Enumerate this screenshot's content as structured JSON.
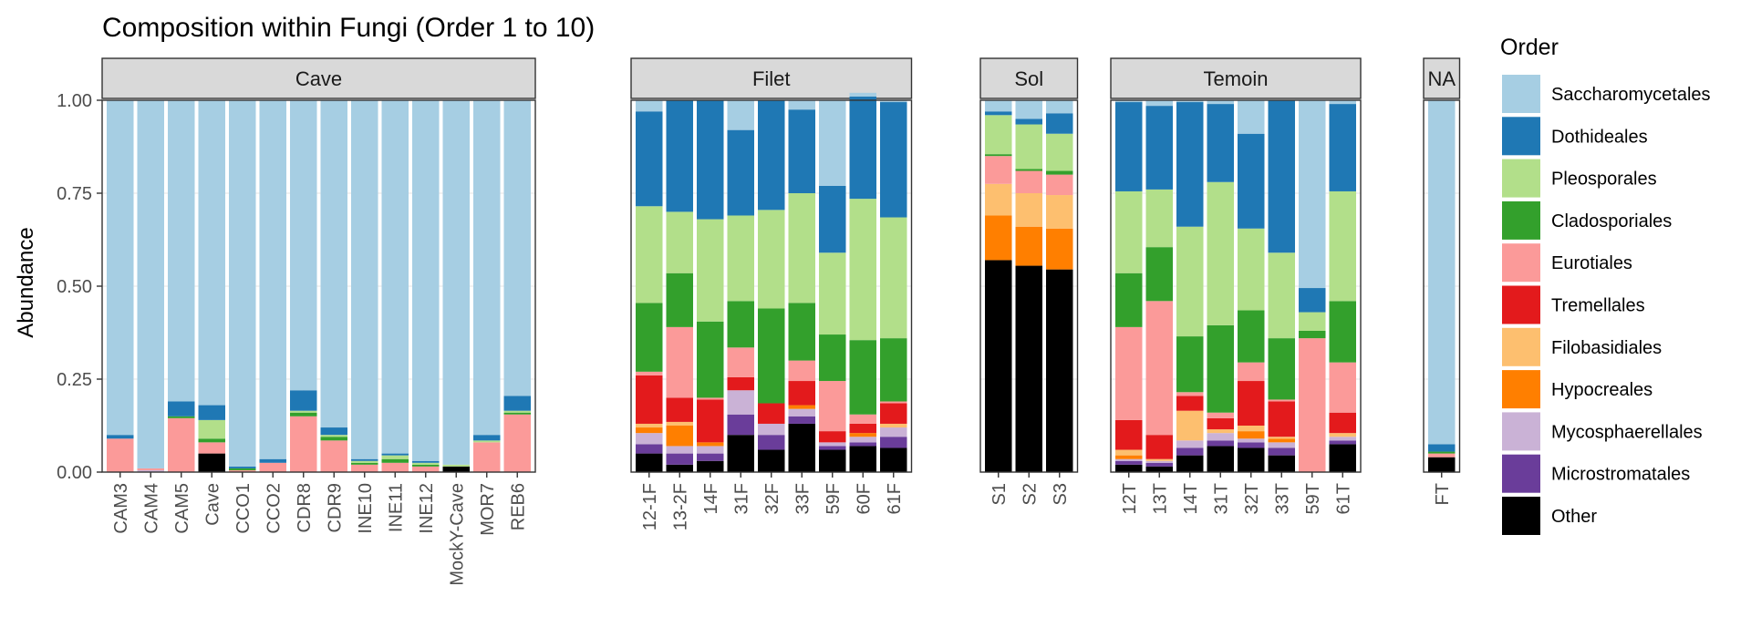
{
  "chart_data": {
    "type": "bar",
    "stacked": true,
    "faceted": true,
    "title": "Composition within Fungi (Order 1 to 10)",
    "xlabel": "",
    "ylabel": "Abundance",
    "ylim": [
      0,
      1
    ],
    "yticks": [
      "0.00",
      "0.25",
      "0.50",
      "0.75",
      "1.00"
    ],
    "legend": {
      "title": "Order",
      "position": "right",
      "entries": [
        "Saccharomycetales",
        "Dothideales",
        "Pleosporales",
        "Cladosporiales",
        "Eurotiales",
        "Tremellales",
        "Filobasidiales",
        "Hypocreales",
        "Mycosphaerellales",
        "Microstromatales",
        "Other"
      ]
    },
    "series_order_bottom_to_top": [
      "Other",
      "Microstromatales",
      "Mycosphaerellales",
      "Hypocreales",
      "Filobasidiales",
      "Tremellales",
      "Eurotiales",
      "Cladosporiales",
      "Pleosporales",
      "Dothideales",
      "Saccharomycetales"
    ],
    "colors": {
      "Saccharomycetales": "#A6CEE3",
      "Dothideales": "#1F78B4",
      "Pleosporales": "#B2DF8A",
      "Cladosporiales": "#33A02C",
      "Eurotiales": "#FB9A99",
      "Tremellales": "#E31A1C",
      "Filobasidiales": "#FDBF6F",
      "Hypocreales": "#FF7F00",
      "Mycosphaerellales": "#CAB2D6",
      "Microstromatales": "#6A3D9A",
      "Other": "#000000"
    },
    "facets": [
      {
        "name": "Cave",
        "samples": [
          {
            "label": "CAM3",
            "values": {
              "Other": 0.0,
              "Eurotiales": 0.09,
              "Dothideales": 0.01,
              "Saccharomycetales": 0.9
            }
          },
          {
            "label": "CAM4",
            "values": {
              "Other": 0.0,
              "Mycosphaerellales": 0.005,
              "Eurotiales": 0.005,
              "Saccharomycetales": 0.99
            }
          },
          {
            "label": "CAM5",
            "values": {
              "Other": 0.0,
              "Eurotiales": 0.145,
              "Cladosporiales": 0.005,
              "Dothideales": 0.04,
              "Saccharomycetales": 0.81
            }
          },
          {
            "label": "Cave",
            "values": {
              "Other": 0.05,
              "Eurotiales": 0.03,
              "Cladosporiales": 0.01,
              "Pleosporales": 0.05,
              "Dothideales": 0.04,
              "Saccharomycetales": 0.82
            }
          },
          {
            "label": "CCO1",
            "values": {
              "Other": 0.0,
              "Eurotiales": 0.005,
              "Cladosporiales": 0.005,
              "Dothideales": 0.005,
              "Saccharomycetales": 0.985
            }
          },
          {
            "label": "CCO2",
            "values": {
              "Other": 0.0,
              "Eurotiales": 0.025,
              "Dothideales": 0.01,
              "Saccharomycetales": 0.965
            }
          },
          {
            "label": "CDR8",
            "values": {
              "Other": 0.0,
              "Eurotiales": 0.15,
              "Cladosporiales": 0.01,
              "Pleosporales": 0.005,
              "Dothideales": 0.055,
              "Saccharomycetales": 0.78
            }
          },
          {
            "label": "CDR9",
            "values": {
              "Other": 0.0,
              "Eurotiales": 0.085,
              "Cladosporiales": 0.01,
              "Pleosporales": 0.005,
              "Dothideales": 0.02,
              "Saccharomycetales": 0.88
            }
          },
          {
            "label": "INE10",
            "values": {
              "Other": 0.0,
              "Eurotiales": 0.02,
              "Cladosporiales": 0.005,
              "Pleosporales": 0.005,
              "Dothideales": 0.005,
              "Saccharomycetales": 0.965
            }
          },
          {
            "label": "INE11",
            "values": {
              "Other": 0.0,
              "Eurotiales": 0.025,
              "Cladosporiales": 0.01,
              "Pleosporales": 0.01,
              "Dothideales": 0.005,
              "Saccharomycetales": 0.95
            }
          },
          {
            "label": "INE12",
            "values": {
              "Other": 0.0,
              "Eurotiales": 0.015,
              "Cladosporiales": 0.005,
              "Pleosporales": 0.005,
              "Dothideales": 0.005,
              "Saccharomycetales": 0.97
            }
          },
          {
            "label": "MockY-Cave",
            "values": {
              "Other": 0.015,
              "Pleosporales": 0.005,
              "Saccharomycetales": 0.98
            }
          },
          {
            "label": "MOR7",
            "values": {
              "Other": 0.0,
              "Eurotiales": 0.08,
              "Pleosporales": 0.005,
              "Dothideales": 0.015,
              "Saccharomycetales": 0.9
            }
          },
          {
            "label": "REB6",
            "values": {
              "Other": 0.0,
              "Eurotiales": 0.155,
              "Cladosporiales": 0.005,
              "Pleosporales": 0.005,
              "Dothideales": 0.04,
              "Saccharomycetales": 0.795
            }
          }
        ]
      },
      {
        "name": "Filet",
        "samples": [
          {
            "label": "12-1F",
            "values": {
              "Other": 0.05,
              "Microstromatales": 0.025,
              "Mycosphaerellales": 0.03,
              "Hypocreales": 0.015,
              "Filobasidiales": 0.01,
              "Tremellales": 0.13,
              "Eurotiales": 0.01,
              "Cladosporiales": 0.185,
              "Pleosporales": 0.26,
              "Dothideales": 0.255,
              "Saccharomycetales": 0.03
            }
          },
          {
            "label": "13-2F",
            "values": {
              "Other": 0.02,
              "Microstromatales": 0.03,
              "Mycosphaerellales": 0.02,
              "Hypocreales": 0.055,
              "Filobasidiales": 0.01,
              "Tremellales": 0.065,
              "Eurotiales": 0.19,
              "Cladosporiales": 0.145,
              "Pleosporales": 0.165,
              "Dothideales": 0.3,
              "Saccharomycetales": 0.0
            }
          },
          {
            "label": "14F",
            "values": {
              "Other": 0.03,
              "Microstromatales": 0.02,
              "Mycosphaerellales": 0.02,
              "Hypocreales": 0.01,
              "Tremellales": 0.115,
              "Eurotiales": 0.005,
              "Cladosporiales": 0.205,
              "Pleosporales": 0.275,
              "Dothideales": 0.32,
              "Saccharomycetales": 0.0
            }
          },
          {
            "label": "31F",
            "values": {
              "Other": 0.1,
              "Microstromatales": 0.055,
              "Mycosphaerellales": 0.065,
              "Tremellales": 0.035,
              "Eurotiales": 0.08,
              "Cladosporiales": 0.125,
              "Pleosporales": 0.23,
              "Dothideales": 0.23,
              "Saccharomycetales": 0.08
            }
          },
          {
            "label": "32F",
            "values": {
              "Other": 0.06,
              "Microstromatales": 0.04,
              "Mycosphaerellales": 0.03,
              "Tremellales": 0.055,
              "Cladosporiales": 0.255,
              "Pleosporales": 0.265,
              "Dothideales": 0.295,
              "Saccharomycetales": 0.0
            }
          },
          {
            "label": "33F",
            "values": {
              "Other": 0.13,
              "Microstromatales": 0.02,
              "Mycosphaerellales": 0.02,
              "Hypocreales": 0.01,
              "Tremellales": 0.065,
              "Eurotiales": 0.055,
              "Cladosporiales": 0.155,
              "Pleosporales": 0.295,
              "Dothideales": 0.225,
              "Saccharomycetales": 0.025
            }
          },
          {
            "label": "59F",
            "values": {
              "Other": 0.06,
              "Microstromatales": 0.01,
              "Mycosphaerellales": 0.01,
              "Tremellales": 0.03,
              "Eurotiales": 0.135,
              "Cladosporiales": 0.125,
              "Pleosporales": 0.22,
              "Dothideales": 0.18,
              "Saccharomycetales": 0.23
            }
          },
          {
            "label": "60F",
            "values": {
              "Other": 0.07,
              "Microstromatales": 0.01,
              "Mycosphaerellales": 0.015,
              "Hypocreales": 0.01,
              "Tremellales": 0.025,
              "Eurotiales": 0.025,
              "Cladosporiales": 0.2,
              "Pleosporales": 0.38,
              "Dothideales": 0.275,
              "Saccharomycetales": 0.01
            }
          },
          {
            "label": "61F",
            "values": {
              "Other": 0.065,
              "Microstromatales": 0.03,
              "Mycosphaerellales": 0.025,
              "Filobasidiales": 0.01,
              "Tremellales": 0.055,
              "Eurotiales": 0.005,
              "Cladosporiales": 0.17,
              "Pleosporales": 0.325,
              "Dothideales": 0.31,
              "Saccharomycetales": 0.005
            }
          }
        ]
      },
      {
        "name": "Sol",
        "samples": [
          {
            "label": "S1",
            "values": {
              "Other": 0.57,
              "Hypocreales": 0.12,
              "Filobasidiales": 0.085,
              "Eurotiales": 0.075,
              "Cladosporiales": 0.005,
              "Pleosporales": 0.105,
              "Dothideales": 0.01,
              "Saccharomycetales": 0.03
            }
          },
          {
            "label": "S2",
            "values": {
              "Other": 0.555,
              "Hypocreales": 0.105,
              "Filobasidiales": 0.09,
              "Eurotiales": 0.06,
              "Cladosporiales": 0.005,
              "Pleosporales": 0.12,
              "Dothideales": 0.015,
              "Saccharomycetales": 0.05
            }
          },
          {
            "label": "S3",
            "values": {
              "Other": 0.545,
              "Hypocreales": 0.11,
              "Filobasidiales": 0.09,
              "Eurotiales": 0.055,
              "Cladosporiales": 0.01,
              "Pleosporales": 0.1,
              "Dothideales": 0.055,
              "Saccharomycetales": 0.035
            }
          }
        ]
      },
      {
        "name": "Temoin",
        "samples": [
          {
            "label": "12T",
            "values": {
              "Other": 0.02,
              "Microstromatales": 0.01,
              "Mycosphaerellales": 0.005,
              "Hypocreales": 0.01,
              "Filobasidiales": 0.015,
              "Tremellales": 0.08,
              "Eurotiales": 0.25,
              "Cladosporiales": 0.145,
              "Pleosporales": 0.22,
              "Dothideales": 0.24,
              "Saccharomycetales": 0.005
            }
          },
          {
            "label": "13T",
            "values": {
              "Other": 0.015,
              "Microstromatales": 0.01,
              "Mycosphaerellales": 0.005,
              "Filobasidiales": 0.005,
              "Tremellales": 0.065,
              "Eurotiales": 0.36,
              "Cladosporiales": 0.145,
              "Pleosporales": 0.155,
              "Dothideales": 0.225,
              "Saccharomycetales": 0.015
            }
          },
          {
            "label": "14T",
            "values": {
              "Other": 0.045,
              "Microstromatales": 0.02,
              "Mycosphaerellales": 0.02,
              "Filobasidiales": 0.08,
              "Tremellales": 0.04,
              "Eurotiales": 0.01,
              "Cladosporiales": 0.15,
              "Pleosporales": 0.295,
              "Dothideales": 0.335,
              "Saccharomycetales": 0.005
            }
          },
          {
            "label": "31T",
            "values": {
              "Other": 0.07,
              "Microstromatales": 0.015,
              "Mycosphaerellales": 0.02,
              "Filobasidiales": 0.01,
              "Tremellales": 0.03,
              "Eurotiales": 0.015,
              "Cladosporiales": 0.235,
              "Pleosporales": 0.385,
              "Dothideales": 0.21,
              "Saccharomycetales": 0.01
            }
          },
          {
            "label": "32T",
            "values": {
              "Other": 0.065,
              "Microstromatales": 0.015,
              "Mycosphaerellales": 0.01,
              "Hypocreales": 0.02,
              "Filobasidiales": 0.015,
              "Tremellales": 0.12,
              "Eurotiales": 0.05,
              "Cladosporiales": 0.14,
              "Pleosporales": 0.22,
              "Dothideales": 0.255,
              "Saccharomycetales": 0.09
            }
          },
          {
            "label": "33T",
            "values": {
              "Other": 0.045,
              "Microstromatales": 0.02,
              "Mycosphaerellales": 0.015,
              "Hypocreales": 0.01,
              "Filobasidiales": 0.005,
              "Tremellales": 0.095,
              "Eurotiales": 0.005,
              "Cladosporiales": 0.165,
              "Pleosporales": 0.23,
              "Dothideales": 0.41,
              "Saccharomycetales": 0.0
            }
          },
          {
            "label": "59T",
            "values": {
              "Other": 0.0,
              "Eurotiales": 0.36,
              "Cladosporiales": 0.02,
              "Pleosporales": 0.05,
              "Dothideales": 0.065,
              "Saccharomycetales": 0.505
            }
          },
          {
            "label": "61T",
            "values": {
              "Other": 0.075,
              "Microstromatales": 0.01,
              "Mycosphaerellales": 0.01,
              "Filobasidiales": 0.01,
              "Tremellales": 0.055,
              "Eurotiales": 0.135,
              "Cladosporiales": 0.165,
              "Pleosporales": 0.295,
              "Dothideales": 0.235,
              "Saccharomycetales": 0.01
            }
          }
        ]
      },
      {
        "name": "NA",
        "samples": [
          {
            "label": "FT",
            "values": {
              "Other": 0.04,
              "Eurotiales": 0.01,
              "Cladosporiales": 0.005,
              "Dothideales": 0.02,
              "Saccharomycetales": 0.925
            }
          }
        ]
      }
    ]
  }
}
